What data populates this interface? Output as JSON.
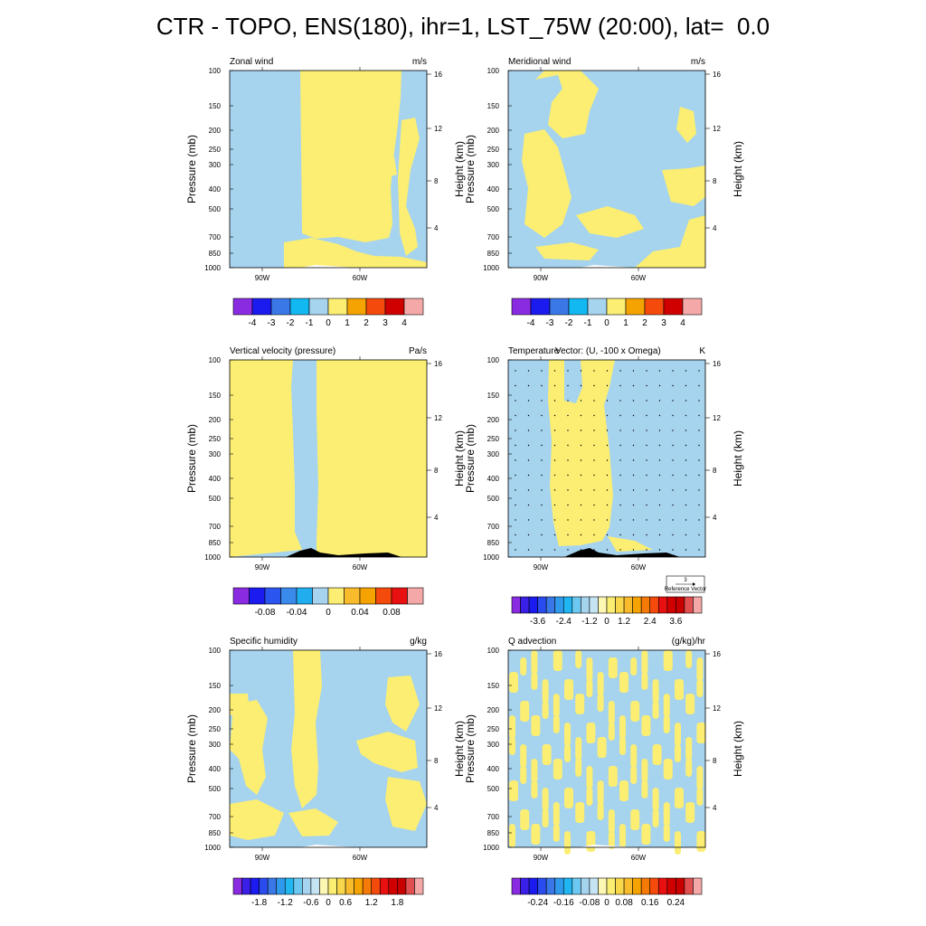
{
  "page": {
    "title": "CTR - TOPO, ENS(180), ihr=1, LST_75W (20:00), lat=  0.0"
  },
  "colors": {
    "blue": "#a6d3ee",
    "yellow": "#fbee73",
    "terrain": "#000000"
  },
  "chart_data": [
    {
      "type": "heatmap",
      "title": "Zonal wind",
      "units": "m/s",
      "ylabel": "Pressure (mb)",
      "y2label": "Height (km)",
      "x_ticks": [
        "90W",
        "60W"
      ],
      "y_ticks": [
        "100",
        "150",
        "200",
        "250",
        "300",
        "400",
        "500",
        "700",
        "850",
        "1000"
      ],
      "y2_ticks": [
        "16",
        "12",
        "8",
        "4"
      ],
      "colorbar": {
        "labels": [
          "-4",
          "-3",
          "-2",
          "-1",
          "0",
          "1",
          "2",
          "3",
          "4"
        ],
        "colors": [
          "#8a2be2",
          "#1b1bef",
          "#3a78e8",
          "#12b8f2",
          "#a6d3ee",
          "#fbee73",
          "#f5a300",
          "#f44a0c",
          "#d10000",
          "#f5a8a8"
        ]
      }
    },
    {
      "type": "heatmap",
      "title": "Meridional wind",
      "units": "m/s",
      "ylabel": "Pressure (mb)",
      "y2label": "Height (km)",
      "x_ticks": [
        "90W",
        "60W"
      ],
      "y_ticks": [
        "100",
        "150",
        "200",
        "250",
        "300",
        "400",
        "500",
        "700",
        "850",
        "1000"
      ],
      "y2_ticks": [
        "16",
        "12",
        "8",
        "4"
      ],
      "colorbar": {
        "labels": [
          "-4",
          "-3",
          "-2",
          "-1",
          "0",
          "1",
          "2",
          "3",
          "4"
        ],
        "colors": [
          "#8a2be2",
          "#1b1bef",
          "#3a78e8",
          "#12b8f2",
          "#a6d3ee",
          "#fbee73",
          "#f5a300",
          "#f44a0c",
          "#d10000",
          "#f5a8a8"
        ]
      }
    },
    {
      "type": "heatmap",
      "title": "Vertical velocity (pressure)",
      "units": "Pa/s",
      "ylabel": "Pressure (mb)",
      "y2label": "Height (km)",
      "x_ticks": [
        "90W",
        "60W"
      ],
      "y_ticks": [
        "100",
        "150",
        "200",
        "250",
        "300",
        "400",
        "500",
        "700",
        "850",
        "1000"
      ],
      "y2_ticks": [
        "16",
        "12",
        "8",
        "4"
      ],
      "colorbar": {
        "labels": [
          "-0.08",
          "-0.04",
          "0",
          "0.04",
          "0.08"
        ],
        "colors": [
          "#8a2be2",
          "#1b1bef",
          "#2a55ee",
          "#3a8aec",
          "#20aef0",
          "#a6d3ee",
          "#fbee73",
          "#f7bb2b",
          "#f5a300",
          "#f44a0c",
          "#e81010",
          "#f5a8a8"
        ]
      }
    },
    {
      "type": "heatmap",
      "title": "Temperature",
      "title2": "Vector: (U, -100 x Omega)",
      "units": "K",
      "ylabel": "Pressure (mb)",
      "y2label": "Height (km)",
      "x_ticks": [
        "90W",
        "60W"
      ],
      "y_ticks": [
        "100",
        "150",
        "200",
        "250",
        "300",
        "400",
        "500",
        "700",
        "850",
        "1000"
      ],
      "y2_ticks": [
        "16",
        "12",
        "8",
        "4"
      ],
      "reference_vector": {
        "value": "3",
        "label": "Reference Vector"
      },
      "colorbar": {
        "labels": [
          "-3.6",
          "-2.4",
          "-1.2",
          "0",
          "1.2",
          "2.4",
          "3.6"
        ],
        "colors": [
          "#8a2be2",
          "#3a1fe6",
          "#1b1bef",
          "#2a4cee",
          "#3a78e8",
          "#2f9aec",
          "#20b6f2",
          "#6cc8f0",
          "#a6d3ee",
          "#c4e4f4",
          "#fdf7b4",
          "#fbee73",
          "#f8d84a",
          "#f7bb2b",
          "#f5a300",
          "#f57a08",
          "#f44a0c",
          "#e81010",
          "#d10000",
          "#c80000",
          "#e05050",
          "#f5a8a8"
        ]
      }
    },
    {
      "type": "heatmap",
      "title": "Specific humidity",
      "units": "g/kg",
      "ylabel": "Pressure (mb)",
      "y2label": "Height (km)",
      "x_ticks": [
        "90W",
        "60W"
      ],
      "y_ticks": [
        "100",
        "150",
        "200",
        "250",
        "300",
        "400",
        "500",
        "700",
        "850",
        "1000"
      ],
      "y2_ticks": [
        "16",
        "12",
        "8",
        "4"
      ],
      "colorbar": {
        "labels": [
          "-1.8",
          "-1.2",
          "-0.6",
          "0",
          "0.6",
          "1.2",
          "1.8"
        ],
        "colors": [
          "#8a2be2",
          "#3a1fe6",
          "#1b1bef",
          "#2a4cee",
          "#3a78e8",
          "#2f9aec",
          "#20b6f2",
          "#6cc8f0",
          "#a6d3ee",
          "#c4e4f4",
          "#fdf7b4",
          "#fbee73",
          "#f8d84a",
          "#f7bb2b",
          "#f5a300",
          "#f57a08",
          "#f44a0c",
          "#e81010",
          "#d10000",
          "#c80000",
          "#e05050",
          "#f5a8a8"
        ]
      }
    },
    {
      "type": "heatmap",
      "title": "Q advection",
      "units": "(g/kg)/hr",
      "ylabel": "Pressure (mb)",
      "y2label": "Height (km)",
      "x_ticks": [
        "90W",
        "60W"
      ],
      "y_ticks": [
        "100",
        "150",
        "200",
        "250",
        "300",
        "400",
        "500",
        "700",
        "850",
        "1000"
      ],
      "y2_ticks": [
        "16",
        "12",
        "8",
        "4"
      ],
      "colorbar": {
        "labels": [
          "-0.24",
          "-0.16",
          "-0.08",
          "0",
          "0.08",
          "0.16",
          "0.24"
        ],
        "colors": [
          "#8a2be2",
          "#3a1fe6",
          "#1b1bef",
          "#2a4cee",
          "#3a78e8",
          "#2f9aec",
          "#20b6f2",
          "#6cc8f0",
          "#a6d3ee",
          "#c4e4f4",
          "#fdf7b4",
          "#fbee73",
          "#f8d84a",
          "#f7bb2b",
          "#f5a300",
          "#f57a08",
          "#f44a0c",
          "#e81010",
          "#d10000",
          "#c80000",
          "#e05050",
          "#f5a8a8"
        ]
      }
    }
  ]
}
